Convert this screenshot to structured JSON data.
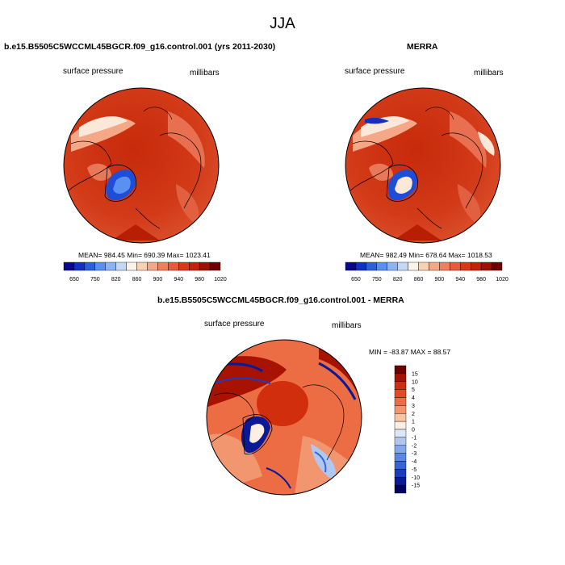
{
  "title": "JJA",
  "panels": [
    {
      "title": "b.e15.B5505C5WCCML45BGCR.f09_g16.control.001 (yrs 2011-2030)",
      "field": "surface pressure",
      "units": "millibars",
      "stats": {
        "mean": "984.45",
        "min": "690.39",
        "max": "1023.41"
      },
      "stats_text": "MEAN= 984.45   Min= 690.39   Max= 1023.41"
    },
    {
      "title": "MERRA",
      "field": "surface pressure",
      "units": "millibars",
      "stats": {
        "mean": "982.49",
        "min": "678.64",
        "max": "1018.53"
      },
      "stats_text": "MEAN= 982.49   Min= 678.64   Max= 1018.53"
    },
    {
      "title": "b.e15.B5505C5WCCML45BGCR.f09_g16.control.001 - MERRA",
      "field": "surface pressure",
      "units": "millibars",
      "stats": {
        "min": "-83.87",
        "max": "88.57"
      },
      "stats_text": "MIN = -83.87 MAX =  88.57"
    }
  ],
  "chart_data": [
    {
      "type": "heatmap",
      "projection": "north polar stereographic",
      "title": "b.e15.B5505C5WCCML45BGCR.f09_g16.control.001 (yrs 2011-2030)",
      "label_left": "surface pressure",
      "label_right": "millibars",
      "levels": [
        "650",
        "750",
        "820",
        "860",
        "900",
        "940",
        "980",
        "1020"
      ],
      "colorbar_orientation": "horizontal",
      "stats": {
        "mean": 984.45,
        "min": 690.39,
        "max": 1023.41
      }
    },
    {
      "type": "heatmap",
      "projection": "north polar stereographic",
      "title": "MERRA",
      "label_left": "surface pressure",
      "label_right": "millibars",
      "levels": [
        "650",
        "750",
        "820",
        "860",
        "900",
        "940",
        "980",
        "1020"
      ],
      "colorbar_orientation": "horizontal",
      "stats": {
        "mean": 982.49,
        "min": 678.64,
        "max": 1018.53
      }
    },
    {
      "type": "heatmap",
      "projection": "north polar stereographic",
      "title": "b.e15.B5505C5WCCML45BGCR.f09_g16.control.001 - MERRA",
      "label_left": "surface pressure",
      "label_right": "millibars",
      "levels": [
        "15",
        "10",
        "5",
        "4",
        "3",
        "2",
        "1",
        "0",
        "-1",
        "-2",
        "-3",
        "-4",
        "-5",
        "-10",
        "-15"
      ],
      "colorbar_orientation": "vertical",
      "stats": {
        "min": -83.87,
        "max": 88.57
      }
    }
  ],
  "colors": {
    "abs_scale": [
      "#08088a",
      "#1030c8",
      "#2a60e0",
      "#5a8ef0",
      "#8cb4f4",
      "#c4d8f6",
      "#fbf3e8",
      "#f8d0b4",
      "#f4a888",
      "#ee8060",
      "#e85a3c",
      "#dc3818",
      "#c42208",
      "#9c1400",
      "#700000"
    ],
    "diff_scale": [
      "#6e0000",
      "#a81200",
      "#d02e0c",
      "#e24a24",
      "#ec6c44",
      "#f29670",
      "#f8c4a4",
      "#fceee2",
      "#dce6f6",
      "#b0c8f0",
      "#84a8ec",
      "#5a86e4",
      "#3464d8",
      "#1a3cc0",
      "#0a1a96",
      "#000064"
    ]
  }
}
